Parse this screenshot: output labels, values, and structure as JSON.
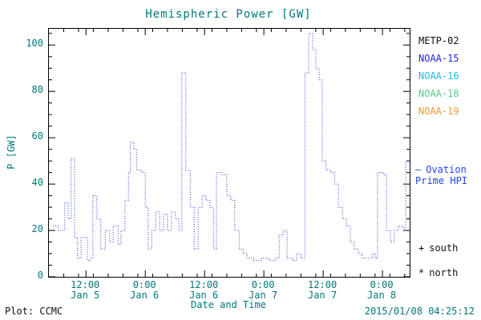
{
  "title": "Hemispheric Power [GW]",
  "footer": {
    "credit": "Plot: CCMC",
    "timestamp": "2015/01/08 04:25:12"
  },
  "legend": {
    "satellites": [
      {
        "label": "METP-02",
        "color": "#111111"
      },
      {
        "label": "NOAA-15",
        "color": "#2222ee"
      },
      {
        "label": "NOAA-16",
        "color": "#22bbee"
      },
      {
        "label": "NOAA-18",
        "color": "#55cc88"
      },
      {
        "label": "NOAA-19",
        "color": "#ee9933"
      }
    ],
    "line_sample": "–",
    "line_label_1": "Ovation",
    "line_label_2": "Prime HPI",
    "line_color": "#2244ee",
    "markers": [
      {
        "symbol": "+",
        "label": "south"
      },
      {
        "symbol": "*",
        "label": "north"
      }
    ]
  },
  "colors": {
    "axis_text": "#007878",
    "axis_line": "#000000",
    "data_line": "#2233cc"
  },
  "chart_data": {
    "type": "line",
    "style": "dotted-step",
    "title": "Hemispheric Power [GW]",
    "xlabel": "Date and Time",
    "ylabel": "P [GW]",
    "ylim": [
      0,
      107
    ],
    "yticks": [
      0,
      20,
      40,
      60,
      80,
      100
    ],
    "y_minor_step": 5,
    "x_span": [
      0,
      73
    ],
    "x_minor_step": 3,
    "xticks": [
      {
        "hour": 7.5,
        "time": "12:00",
        "date": "Jan 5"
      },
      {
        "hour": 19.5,
        "time": "0:00",
        "date": "Jan 6"
      },
      {
        "hour": 31.5,
        "time": "12:00",
        "date": "Jan 6"
      },
      {
        "hour": 43.5,
        "time": "0:00",
        "date": "Jan 7"
      },
      {
        "hour": 55.5,
        "time": "12:00",
        "date": "Jan 7"
      },
      {
        "hour": 67.5,
        "time": "0:00",
        "date": "Jan 8"
      }
    ],
    "series": [
      {
        "name": "Ovation Prime HPI",
        "color": "#2233cc",
        "points": [
          [
            0.8,
            22
          ],
          [
            1.9,
            20
          ],
          [
            3.2,
            32
          ],
          [
            3.9,
            25
          ],
          [
            4.5,
            51
          ],
          [
            5.2,
            17
          ],
          [
            5.8,
            8
          ],
          [
            6.5,
            17
          ],
          [
            7.8,
            7
          ],
          [
            8.4,
            8
          ],
          [
            8.9,
            35
          ],
          [
            9.7,
            25
          ],
          [
            10.5,
            12
          ],
          [
            11.4,
            20
          ],
          [
            12.3,
            15
          ],
          [
            13.0,
            22
          ],
          [
            14.0,
            14
          ],
          [
            14.6,
            20
          ],
          [
            15.4,
            33
          ],
          [
            16.1,
            45
          ],
          [
            16.5,
            58
          ],
          [
            17.2,
            55
          ],
          [
            17.8,
            46
          ],
          [
            18.8,
            45
          ],
          [
            19.5,
            30
          ],
          [
            20.1,
            12
          ],
          [
            20.8,
            20
          ],
          [
            21.6,
            28
          ],
          [
            22.4,
            20
          ],
          [
            23.2,
            27
          ],
          [
            24.0,
            20
          ],
          [
            24.8,
            28
          ],
          [
            25.6,
            25
          ],
          [
            26.3,
            20
          ],
          [
            26.9,
            88
          ],
          [
            27.7,
            46
          ],
          [
            28.6,
            30
          ],
          [
            29.4,
            12
          ],
          [
            30.2,
            30
          ],
          [
            31.0,
            35
          ],
          [
            31.8,
            33
          ],
          [
            32.6,
            30
          ],
          [
            33.3,
            12
          ],
          [
            33.9,
            45
          ],
          [
            35.0,
            44
          ],
          [
            36.0,
            35
          ],
          [
            36.8,
            33
          ],
          [
            37.6,
            20
          ],
          [
            38.5,
            12
          ],
          [
            39.3,
            10
          ],
          [
            40.1,
            8
          ],
          [
            41.4,
            7
          ],
          [
            43.0,
            8
          ],
          [
            44.6,
            7
          ],
          [
            45.8,
            8
          ],
          [
            46.6,
            18
          ],
          [
            47.4,
            20
          ],
          [
            48.2,
            8
          ],
          [
            49.3,
            7
          ],
          [
            50.1,
            10
          ],
          [
            51.0,
            8
          ],
          [
            51.8,
            88
          ],
          [
            52.6,
            105
          ],
          [
            53.4,
            98
          ],
          [
            54.0,
            90
          ],
          [
            54.7,
            85
          ],
          [
            55.3,
            50
          ],
          [
            56.1,
            46
          ],
          [
            57.0,
            45
          ],
          [
            57.8,
            40
          ],
          [
            58.6,
            30
          ],
          [
            59.4,
            25
          ],
          [
            60.2,
            22
          ],
          [
            61.0,
            15
          ],
          [
            61.8,
            12
          ],
          [
            62.6,
            10
          ],
          [
            63.4,
            8
          ],
          [
            64.6,
            8
          ],
          [
            65.4,
            10
          ],
          [
            66.0,
            8
          ],
          [
            66.5,
            45
          ],
          [
            67.7,
            44
          ],
          [
            68.3,
            20
          ],
          [
            69.1,
            15
          ],
          [
            69.9,
            20
          ],
          [
            70.7,
            22
          ],
          [
            71.6,
            21
          ],
          [
            72.2,
            50
          ],
          [
            73.0,
            50
          ]
        ]
      }
    ]
  }
}
